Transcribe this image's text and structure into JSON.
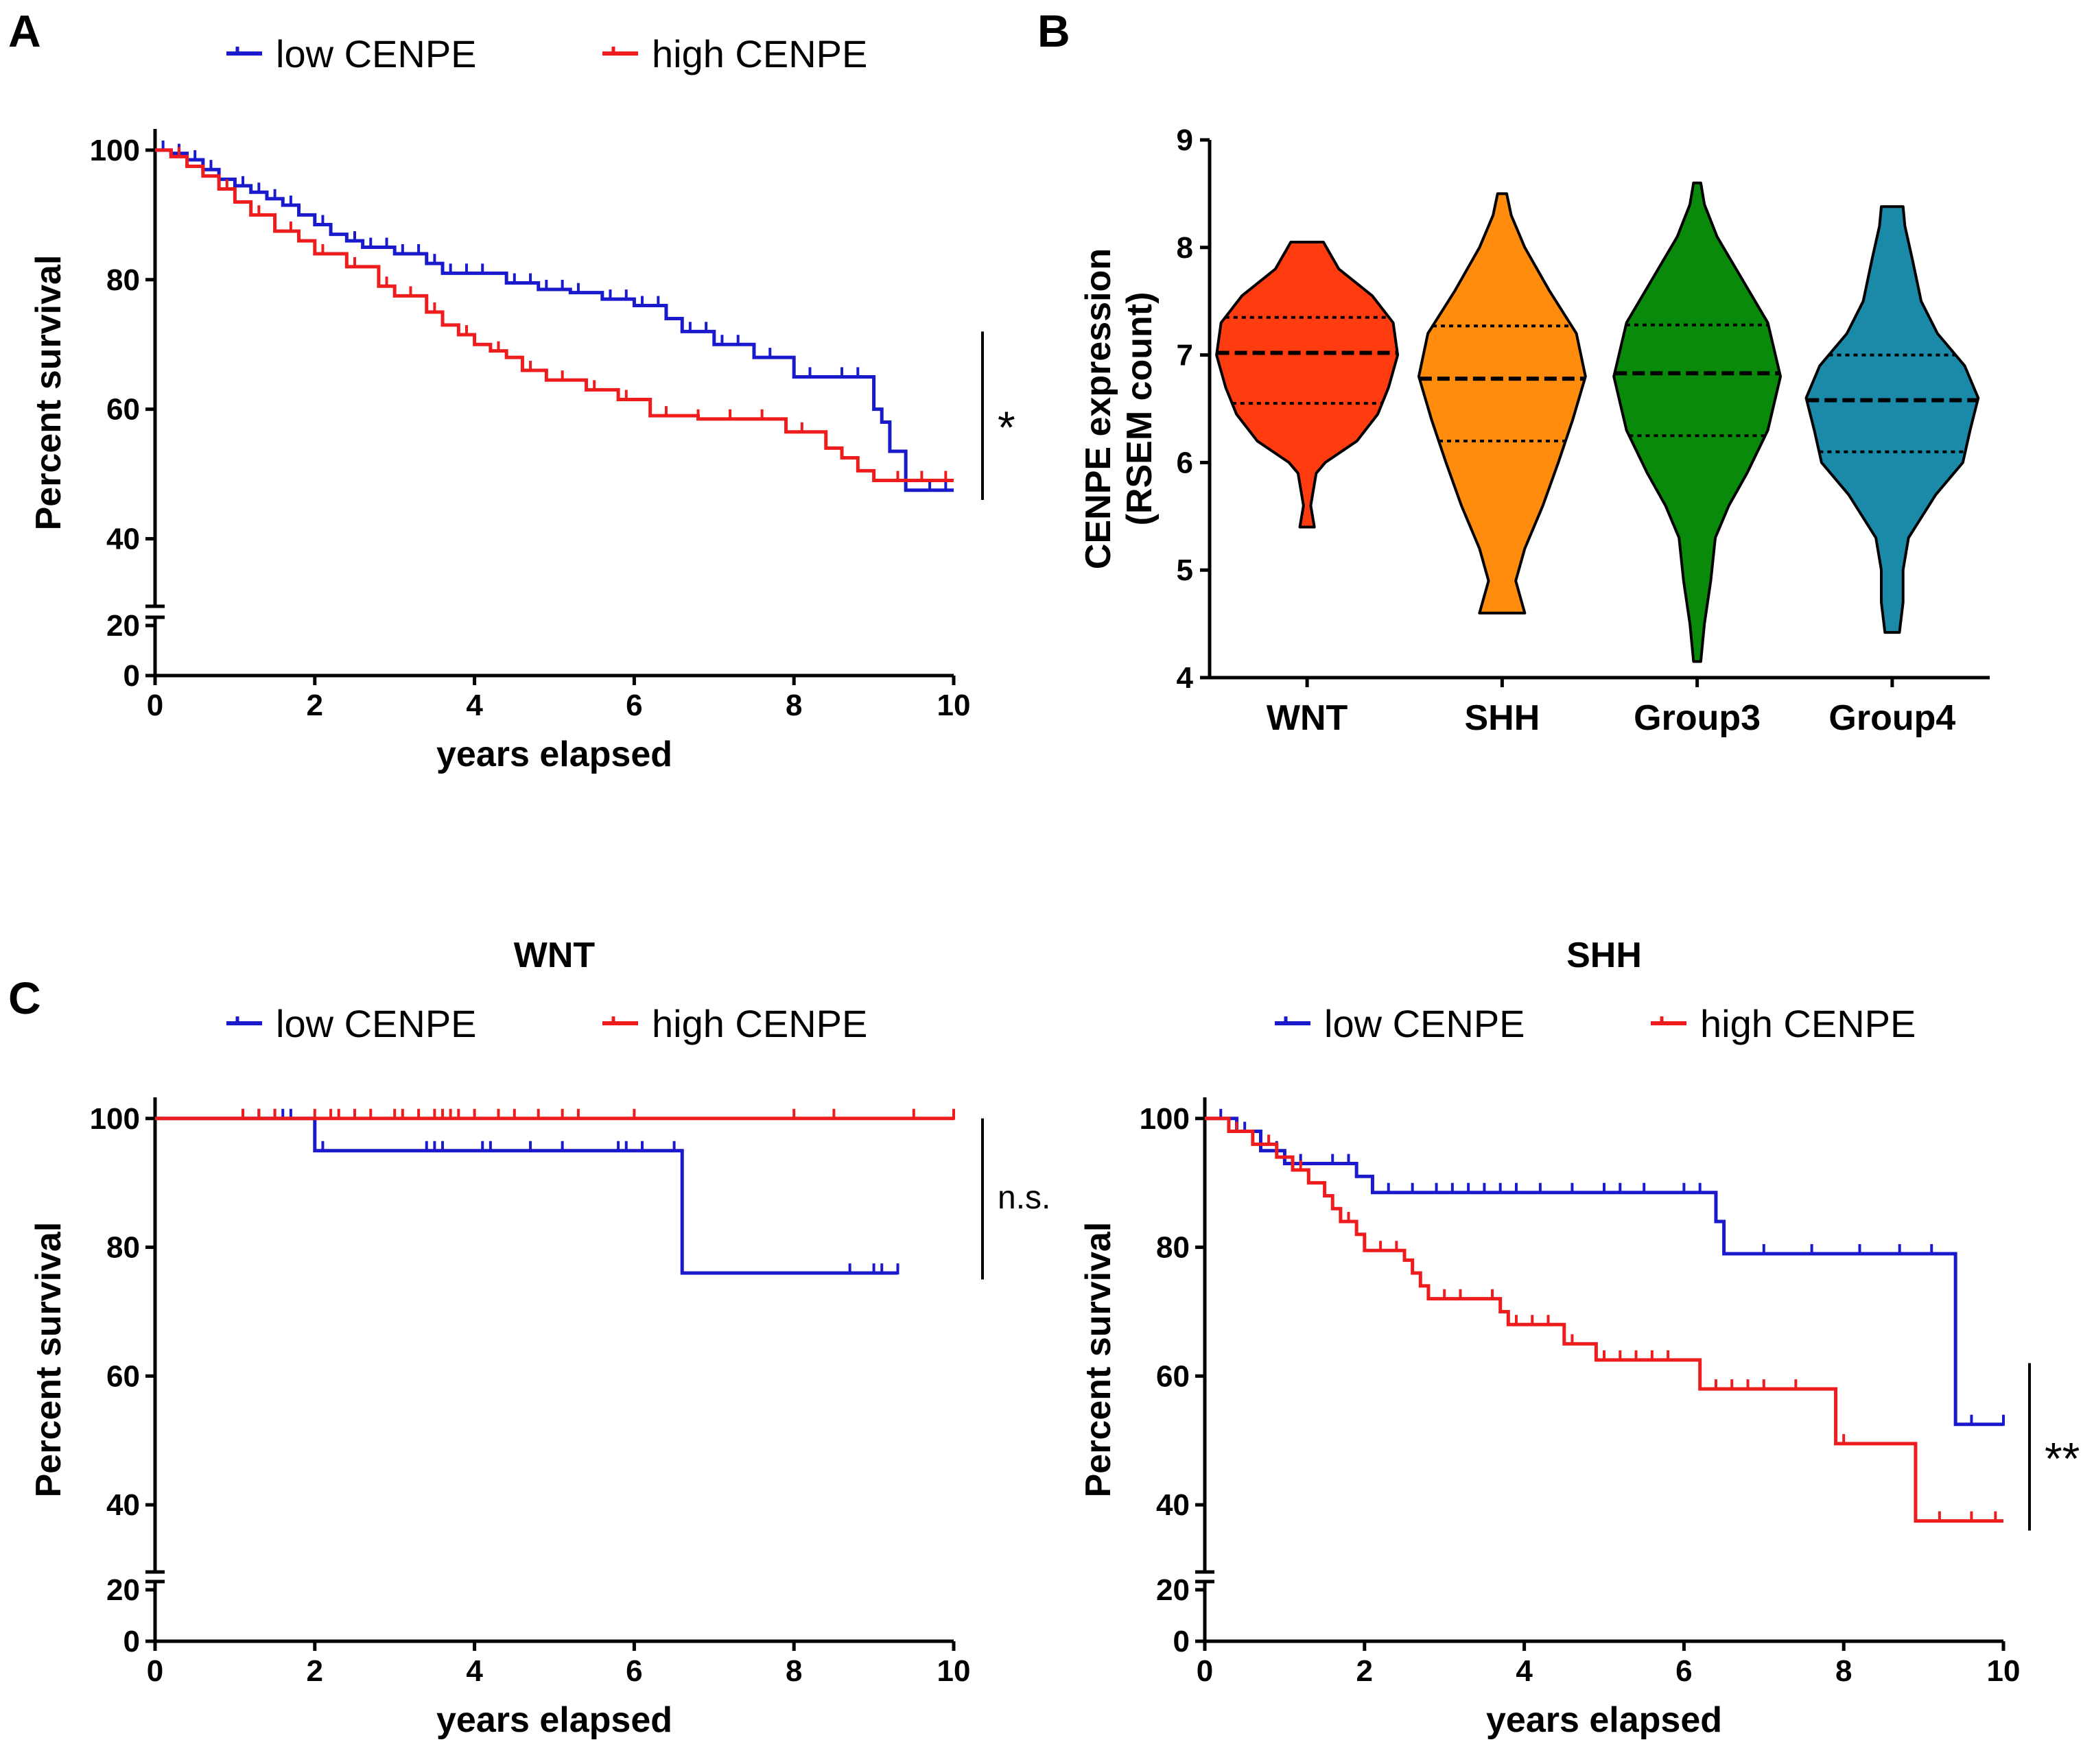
{
  "figure": {
    "panel_a": "A",
    "panel_b": "B",
    "panel_c": "C"
  },
  "chart_data": [
    {
      "id": "A",
      "type": "line",
      "subtype": "kaplan-meier",
      "title": "",
      "xlabel": "years elapsed",
      "ylabel": "Percent survival",
      "xlim": [
        0,
        10
      ],
      "xticks": [
        "0",
        "2",
        "4",
        "6",
        "8",
        "10"
      ],
      "yticks": [
        "0",
        "20",
        "40",
        "60",
        "80",
        "100"
      ],
      "ylim_upper": [
        30,
        102
      ],
      "ylim_lower": [
        0,
        20
      ],
      "legend_position": "top",
      "significance": "*",
      "sig_range": [
        46,
        72
      ],
      "series": [
        {
          "name": "low CENPE",
          "color": "#1a1acc",
          "x": [
            0,
            0.2,
            0.4,
            0.6,
            0.8,
            1.0,
            1.2,
            1.4,
            1.6,
            1.8,
            2.0,
            2.2,
            2.4,
            2.6,
            3.0,
            3.4,
            3.6,
            4.4,
            4.8,
            5.2,
            5.6,
            6.0,
            6.4,
            6.6,
            7.0,
            7.5,
            8.0,
            9.0,
            9.1,
            9.2,
            9.4,
            10.0
          ],
          "values": [
            100,
            99.5,
            98.5,
            97,
            95.5,
            94.5,
            93.5,
            92.5,
            91.5,
            90,
            88.5,
            87,
            86,
            85,
            84,
            82.5,
            81,
            79.5,
            78.5,
            78,
            77,
            76,
            74,
            72,
            70,
            68,
            65,
            60,
            58,
            53.5,
            47.5,
            47.5
          ],
          "censors_x": [
            0.1,
            0.3,
            0.5,
            0.7,
            1.1,
            1.3,
            1.5,
            1.7,
            2.1,
            2.5,
            2.7,
            2.9,
            3.1,
            3.3,
            3.5,
            3.7,
            3.9,
            4.1,
            4.5,
            4.7,
            4.9,
            5.1,
            5.3,
            5.7,
            5.9,
            6.1,
            6.3,
            6.7,
            6.9,
            7.1,
            7.3,
            7.7,
            8.2,
            8.6,
            8.8,
            9.7,
            9.9
          ]
        },
        {
          "name": "high CENPE",
          "color": "#ee1c1c",
          "x": [
            0,
            0.2,
            0.4,
            0.6,
            0.8,
            1.0,
            1.2,
            1.5,
            1.8,
            2.0,
            2.4,
            2.8,
            3.0,
            3.4,
            3.6,
            3.8,
            4.0,
            4.2,
            4.4,
            4.6,
            4.9,
            5.4,
            5.8,
            6.2,
            6.8,
            7.9,
            8.4,
            8.6,
            8.8,
            9.0,
            10.0
          ],
          "values": [
            100,
            99,
            97.5,
            96,
            94,
            92,
            90,
            87.5,
            86,
            84,
            82,
            79,
            77.5,
            75,
            73,
            71.5,
            70,
            69,
            68,
            66,
            64.5,
            63,
            61.5,
            59,
            58.5,
            56.5,
            54,
            52.5,
            50.5,
            49,
            49
          ],
          "censors_x": [
            0.3,
            0.9,
            1.3,
            1.7,
            2.1,
            2.5,
            2.9,
            3.2,
            3.5,
            3.9,
            4.3,
            4.7,
            5.1,
            5.5,
            5.9,
            6.4,
            6.8,
            7.2,
            7.6,
            8.1,
            8.8,
            9.3,
            9.6,
            9.9
          ]
        }
      ]
    },
    {
      "id": "B",
      "type": "violin",
      "title": "",
      "xlabel": "",
      "ylabel": "CENPE expression (RSEM count)",
      "ylabel_lines": [
        "CENPE expression",
        "(RSEM count)"
      ],
      "ylim": [
        4,
        9
      ],
      "yticks": [
        "4",
        "5",
        "6",
        "7",
        "8",
        "9"
      ],
      "categories": [
        "WNT",
        "SHH",
        "Group3",
        "Group4"
      ],
      "groups": [
        {
          "name": "WNT",
          "color": "#ff3b10",
          "min": 5.4,
          "max": 8.05,
          "q1": 6.55,
          "median": 7.02,
          "q3": 7.35,
          "density_y": [
            5.4,
            5.6,
            5.9,
            6.0,
            6.2,
            6.45,
            6.7,
            7.0,
            7.3,
            7.55,
            7.8,
            8.05
          ],
          "density_w": [
            0.08,
            0.04,
            0.1,
            0.2,
            0.55,
            0.78,
            0.9,
            1.0,
            0.95,
            0.72,
            0.35,
            0.18
          ]
        },
        {
          "name": "SHH",
          "color": "#ff8c0c",
          "min": 4.6,
          "max": 8.5,
          "q1": 6.2,
          "median": 6.78,
          "q3": 7.27,
          "density_y": [
            4.6,
            4.9,
            5.2,
            5.6,
            6.0,
            6.4,
            6.8,
            7.2,
            7.6,
            8.0,
            8.3,
            8.5
          ],
          "density_w": [
            0.25,
            0.15,
            0.25,
            0.45,
            0.62,
            0.78,
            0.92,
            0.82,
            0.52,
            0.25,
            0.1,
            0.05
          ]
        },
        {
          "name": "Group3",
          "color": "#0a8a0a",
          "min": 4.15,
          "max": 8.6,
          "q1": 6.25,
          "median": 6.83,
          "q3": 7.28,
          "density_y": [
            4.15,
            4.5,
            4.9,
            5.3,
            5.6,
            5.9,
            6.3,
            6.8,
            7.3,
            7.7,
            8.1,
            8.4,
            8.6
          ],
          "density_w": [
            0.04,
            0.08,
            0.15,
            0.2,
            0.35,
            0.55,
            0.78,
            0.92,
            0.78,
            0.5,
            0.22,
            0.08,
            0.04
          ]
        },
        {
          "name": "Group4",
          "color": "#1a8aa8",
          "min": 4.42,
          "max": 8.38,
          "q1": 6.1,
          "median": 6.58,
          "q3": 7.0,
          "density_y": [
            4.42,
            4.7,
            5.0,
            5.3,
            5.7,
            6.0,
            6.3,
            6.6,
            6.9,
            7.2,
            7.5,
            7.9,
            8.2,
            8.38
          ],
          "density_w": [
            0.08,
            0.12,
            0.12,
            0.18,
            0.48,
            0.78,
            0.86,
            0.95,
            0.8,
            0.5,
            0.32,
            0.22,
            0.14,
            0.12
          ]
        }
      ]
    },
    {
      "id": "C-WNT",
      "type": "line",
      "subtype": "kaplan-meier",
      "title": "WNT",
      "xlabel": "years elapsed",
      "ylabel": "Percent survival",
      "xlim": [
        0,
        10
      ],
      "xticks": [
        "0",
        "2",
        "4",
        "6",
        "8",
        "10"
      ],
      "yticks": [
        "0",
        "20",
        "40",
        "60",
        "80",
        "100"
      ],
      "ylim_upper": [
        30,
        102
      ],
      "ylim_lower": [
        0,
        20
      ],
      "legend_position": "top",
      "significance": "n.s.",
      "sig_range": [
        75,
        100
      ],
      "series": [
        {
          "name": "low CENPE",
          "color": "#1a1acc",
          "x": [
            0,
            2.0,
            6.6,
            9.3
          ],
          "values": [
            100,
            95,
            76,
            76
          ],
          "censors_x": [
            1.1,
            1.3,
            1.5,
            1.6,
            1.7,
            2.1,
            3.4,
            3.5,
            3.6,
            4.1,
            4.2,
            4.7,
            5.1,
            5.8,
            5.9,
            6.1,
            6.5,
            8.7,
            9.0,
            9.1,
            9.3
          ]
        },
        {
          "name": "high CENPE",
          "color": "#ee1c1c",
          "x": [
            0,
            10.0
          ],
          "values": [
            100,
            100
          ],
          "censors_x": [
            1.1,
            1.3,
            1.5,
            2.0,
            2.2,
            2.3,
            2.5,
            2.7,
            3.0,
            3.1,
            3.3,
            3.5,
            3.6,
            3.7,
            3.8,
            4.0,
            4.3,
            4.5,
            4.8,
            5.1,
            5.3,
            6.0,
            8.0,
            8.5,
            9.5,
            10.0
          ]
        }
      ]
    },
    {
      "id": "C-SHH",
      "type": "line",
      "subtype": "kaplan-meier",
      "title": "SHH",
      "xlabel": "years elapsed",
      "ylabel": "Percent survival",
      "xlim": [
        0,
        10
      ],
      "xticks": [
        "0",
        "2",
        "4",
        "6",
        "8",
        "10"
      ],
      "yticks": [
        "0",
        "20",
        "40",
        "60",
        "80",
        "100"
      ],
      "ylim_upper": [
        30,
        102
      ],
      "ylim_lower": [
        0,
        20
      ],
      "legend_position": "top",
      "significance": "**",
      "sig_range": [
        36,
        62
      ],
      "series": [
        {
          "name": "low CENPE",
          "color": "#1a1acc",
          "x": [
            0,
            0.4,
            0.7,
            1.0,
            1.4,
            1.9,
            2.1,
            6.4,
            6.5,
            9.4,
            10.0
          ],
          "values": [
            100,
            98,
            95,
            93,
            93,
            91,
            88.5,
            84,
            79,
            52.5,
            52.5
          ],
          "censors_x": [
            0.2,
            0.5,
            0.9,
            1.2,
            1.6,
            1.8,
            2.3,
            2.6,
            2.9,
            3.1,
            3.3,
            3.5,
            3.7,
            3.9,
            4.2,
            4.6,
            5.0,
            5.2,
            5.5,
            6.0,
            6.2,
            7.0,
            7.6,
            8.2,
            8.7,
            9.1,
            9.6,
            10.0
          ]
        },
        {
          "name": "high CENPE",
          "color": "#ee1c1c",
          "x": [
            0,
            0.3,
            0.6,
            0.9,
            1.1,
            1.3,
            1.5,
            1.6,
            1.7,
            1.9,
            2.0,
            2.5,
            2.6,
            2.7,
            2.8,
            3.7,
            3.8,
            4.5,
            4.9,
            6.2,
            7.9,
            8.9,
            10.0
          ],
          "values": [
            100,
            98,
            96,
            94,
            92,
            90,
            88,
            86,
            84,
            82,
            79.5,
            78,
            76,
            74,
            72,
            70,
            68,
            65,
            62.5,
            58,
            49.5,
            37.5,
            37.5
          ],
          "censors_x": [
            0.4,
            0.8,
            1.2,
            1.8,
            2.2,
            2.4,
            3.0,
            3.2,
            3.6,
            3.9,
            4.1,
            4.3,
            4.6,
            5.0,
            5.2,
            5.4,
            5.6,
            5.8,
            6.4,
            6.6,
            6.8,
            7.0,
            7.4,
            8.0,
            9.2,
            9.6,
            9.9
          ]
        }
      ]
    }
  ]
}
